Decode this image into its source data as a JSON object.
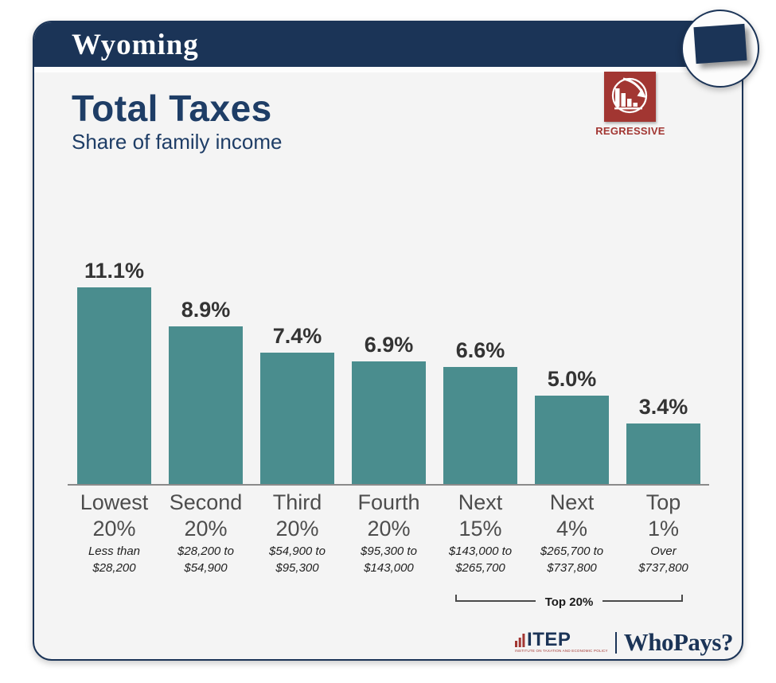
{
  "header": {
    "state_name": "Wyoming"
  },
  "title": "Total Taxes",
  "subtitle": "Share of family income",
  "regressive_badge": {
    "label": "REGRESSIVE"
  },
  "icons": {
    "state_badge": "wyoming-state-shape-icon",
    "regressive": "declining-bar-chart-arrow-icon",
    "itep_logo": "ascending-bars-icon"
  },
  "chart_data": {
    "type": "bar",
    "title": "Total Taxes",
    "subtitle": "Share of family income",
    "categories": [
      "Lowest 20%",
      "Second 20%",
      "Third 20%",
      "Fourth 20%",
      "Next 15%",
      "Next 4%",
      "Top 1%"
    ],
    "category_lines": [
      [
        "Lowest",
        "20%"
      ],
      [
        "Second",
        "20%"
      ],
      [
        "Third",
        "20%"
      ],
      [
        "Fourth",
        "20%"
      ],
      [
        "Next",
        "15%"
      ],
      [
        "Next",
        "4%"
      ],
      [
        "Top",
        "1%"
      ]
    ],
    "values": [
      11.1,
      8.9,
      7.4,
      6.9,
      6.6,
      5.0,
      3.4
    ],
    "value_labels": [
      "11.1%",
      "8.9%",
      "7.4%",
      "6.9%",
      "6.6%",
      "5.0%",
      "3.4%"
    ],
    "income_ranges": [
      [
        "Less than",
        "$28,200"
      ],
      [
        "$28,200 to",
        "$54,900"
      ],
      [
        "$54,900 to",
        "$95,300"
      ],
      [
        "$95,300 to",
        "$143,000"
      ],
      [
        "$143,000 to",
        "$265,700"
      ],
      [
        "$265,700 to",
        "$737,800"
      ],
      [
        "Over",
        "$737,800"
      ]
    ],
    "annotation": {
      "label": "Top 20%",
      "spans_categories": [
        "Next 15%",
        "Next 4%",
        "Top 1%"
      ]
    },
    "unit": "percent of family income",
    "ylim": [
      0,
      12
    ],
    "grid": false,
    "legend": false,
    "bar_color": "#4a8d8e"
  },
  "footer": {
    "itep_logo_text": "ITEP",
    "itep_caption": "INSTITUTE ON TAXATION AND ECONOMIC POLICY",
    "whopays_logo_text": "WhoPays?"
  },
  "colors": {
    "navy": "#1b3457",
    "title_navy": "#1e3d66",
    "teal": "#4a8d8e",
    "red": "#a23632",
    "card_bg": "#f4f4f4",
    "value_label": "#333333",
    "tier_label": "#4d4d4d"
  }
}
